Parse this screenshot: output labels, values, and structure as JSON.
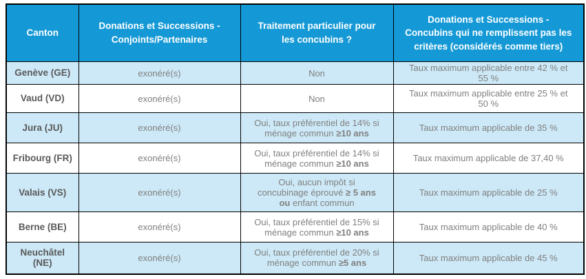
{
  "colors": {
    "header_bg": "#1599d6",
    "header_text": "#ffffff",
    "shaded_row_bg": "#cde9f7",
    "plain_row_bg": "#ffffff",
    "canton_text": "#595959",
    "cell_text": "#7f7f7f",
    "border": "#000000"
  },
  "table": {
    "headers": [
      {
        "key": "canton",
        "label": "Canton"
      },
      {
        "key": "conjoints",
        "label": "Donations et Successions -\nConjoints/Partenaires"
      },
      {
        "key": "traitement",
        "label": "Traitement particulier pour\nles concubins ?"
      },
      {
        "key": "tiers",
        "label": "Donations et Successions -\nConcubins qui ne remplissent pas les\ncritères (considérés comme tiers)"
      }
    ],
    "rows": [
      {
        "id": "geneve",
        "shaded": true,
        "canton": "Genève (GE)",
        "conjoints": "exonéré(s)",
        "traitement": [
          {
            "text": "Non",
            "bold": false
          }
        ],
        "tiers": "Taux maximum applicable entre 42 % et\n55 %"
      },
      {
        "id": "vaud",
        "shaded": false,
        "canton": "Vaud (VD)",
        "conjoints": "exonéré(s)",
        "traitement": [
          {
            "text": "Non",
            "bold": false
          }
        ],
        "tiers": "Taux maximum applicable entre 25 % et\n50 %"
      },
      {
        "id": "jura",
        "shaded": true,
        "canton": "Jura (JU)",
        "conjoints": "exonéré(s)",
        "traitement": [
          {
            "text": "Oui, taux préférentiel de 14% si\nménage commun ",
            "bold": false
          },
          {
            "text": "≥10 ans",
            "bold": true
          }
        ],
        "tiers": "Taux maximum applicable de 35 %"
      },
      {
        "id": "fribourg",
        "shaded": false,
        "canton": "Fribourg (FR)",
        "conjoints": "exonéré(s)",
        "traitement": [
          {
            "text": "Oui, taux préférentiel de 14% si\nménage commun ",
            "bold": false
          },
          {
            "text": "≥10 ans",
            "bold": true
          }
        ],
        "tiers": "Taux maximum applicable de 37,40 %"
      },
      {
        "id": "valais",
        "shaded": true,
        "canton": "Valais (VS)",
        "conjoints": "exonéré(s)",
        "traitement": [
          {
            "text": "Oui, aucun impôt si\nconcubinage éprouvé ",
            "bold": false
          },
          {
            "text": "≥ 5 ans",
            "bold": true
          },
          {
            "text": "\n",
            "bold": false
          },
          {
            "text": "ou",
            "bold": true
          },
          {
            "text": " enfant commun",
            "bold": false
          }
        ],
        "tiers": "Taux maximum applicable de 25 %"
      },
      {
        "id": "berne",
        "shaded": false,
        "canton": "Berne (BE)",
        "conjoints": "exonéré(s)",
        "traitement": [
          {
            "text": "Oui, taux préférentiel de 15% si\nménage commun ",
            "bold": false
          },
          {
            "text": "≥10 ans",
            "bold": true
          }
        ],
        "tiers": "Taux maximum applicable de 40 %"
      },
      {
        "id": "neuchatel",
        "shaded": true,
        "canton": "Neuchâtel\n(NE)",
        "conjoints": "exonéré(s)",
        "traitement": [
          {
            "text": "Oui, taux préférentiel de 20% si\nménage commun ",
            "bold": false
          },
          {
            "text": "≥5 ans",
            "bold": true
          }
        ],
        "tiers": "Taux maximum applicable de 45 %"
      }
    ]
  }
}
